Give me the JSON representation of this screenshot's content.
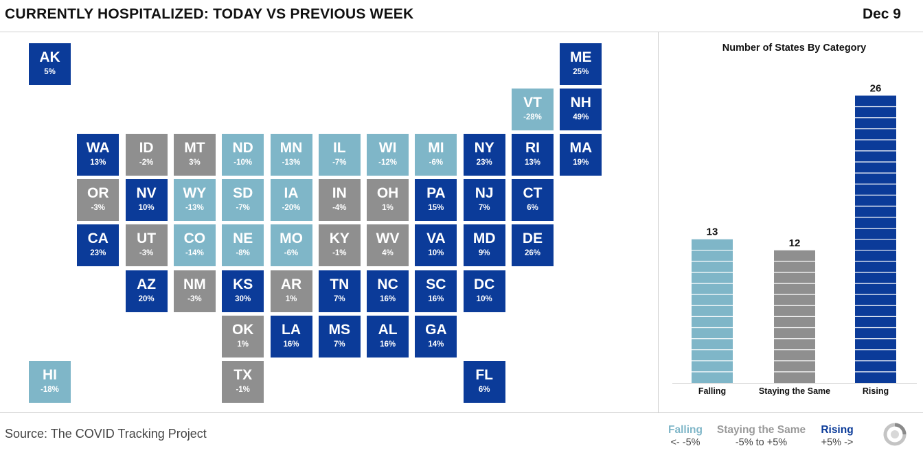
{
  "header": {
    "title": "CURRENTLY HOSPITALIZED: TODAY VS PREVIOUS WEEK",
    "date": "Dec 9"
  },
  "colors": {
    "falling": "#7fb6c8",
    "same": "#8f8f8f",
    "rising": "#0b3b99"
  },
  "states": [
    {
      "abbr": "AK",
      "pct": "5%",
      "cat": "rising",
      "col": 0,
      "row": 0
    },
    {
      "abbr": "ME",
      "pct": "25%",
      "cat": "rising",
      "col": 11,
      "row": 0
    },
    {
      "abbr": "VT",
      "pct": "-28%",
      "cat": "falling",
      "col": 10,
      "row": 1
    },
    {
      "abbr": "NH",
      "pct": "49%",
      "cat": "rising",
      "col": 11,
      "row": 1
    },
    {
      "abbr": "WA",
      "pct": "13%",
      "cat": "rising",
      "col": 1,
      "row": 2
    },
    {
      "abbr": "ID",
      "pct": "-2%",
      "cat": "same",
      "col": 2,
      "row": 2
    },
    {
      "abbr": "MT",
      "pct": "3%",
      "cat": "same",
      "col": 3,
      "row": 2
    },
    {
      "abbr": "ND",
      "pct": "-10%",
      "cat": "falling",
      "col": 4,
      "row": 2
    },
    {
      "abbr": "MN",
      "pct": "-13%",
      "cat": "falling",
      "col": 5,
      "row": 2
    },
    {
      "abbr": "IL",
      "pct": "-7%",
      "cat": "falling",
      "col": 6,
      "row": 2
    },
    {
      "abbr": "WI",
      "pct": "-12%",
      "cat": "falling",
      "col": 7,
      "row": 2
    },
    {
      "abbr": "MI",
      "pct": "-6%",
      "cat": "falling",
      "col": 8,
      "row": 2
    },
    {
      "abbr": "NY",
      "pct": "23%",
      "cat": "rising",
      "col": 9,
      "row": 2
    },
    {
      "abbr": "RI",
      "pct": "13%",
      "cat": "rising",
      "col": 10,
      "row": 2
    },
    {
      "abbr": "MA",
      "pct": "19%",
      "cat": "rising",
      "col": 11,
      "row": 2
    },
    {
      "abbr": "OR",
      "pct": "-3%",
      "cat": "same",
      "col": 1,
      "row": 3
    },
    {
      "abbr": "NV",
      "pct": "10%",
      "cat": "rising",
      "col": 2,
      "row": 3
    },
    {
      "abbr": "WY",
      "pct": "-13%",
      "cat": "falling",
      "col": 3,
      "row": 3
    },
    {
      "abbr": "SD",
      "pct": "-7%",
      "cat": "falling",
      "col": 4,
      "row": 3
    },
    {
      "abbr": "IA",
      "pct": "-20%",
      "cat": "falling",
      "col": 5,
      "row": 3
    },
    {
      "abbr": "IN",
      "pct": "-4%",
      "cat": "same",
      "col": 6,
      "row": 3
    },
    {
      "abbr": "OH",
      "pct": "1%",
      "cat": "same",
      "col": 7,
      "row": 3
    },
    {
      "abbr": "PA",
      "pct": "15%",
      "cat": "rising",
      "col": 8,
      "row": 3
    },
    {
      "abbr": "NJ",
      "pct": "7%",
      "cat": "rising",
      "col": 9,
      "row": 3
    },
    {
      "abbr": "CT",
      "pct": "6%",
      "cat": "rising",
      "col": 10,
      "row": 3
    },
    {
      "abbr": "CA",
      "pct": "23%",
      "cat": "rising",
      "col": 1,
      "row": 4
    },
    {
      "abbr": "UT",
      "pct": "-3%",
      "cat": "same",
      "col": 2,
      "row": 4
    },
    {
      "abbr": "CO",
      "pct": "-14%",
      "cat": "falling",
      "col": 3,
      "row": 4
    },
    {
      "abbr": "NE",
      "pct": "-8%",
      "cat": "falling",
      "col": 4,
      "row": 4
    },
    {
      "abbr": "MO",
      "pct": "-6%",
      "cat": "falling",
      "col": 5,
      "row": 4
    },
    {
      "abbr": "KY",
      "pct": "-1%",
      "cat": "same",
      "col": 6,
      "row": 4
    },
    {
      "abbr": "WV",
      "pct": "4%",
      "cat": "same",
      "col": 7,
      "row": 4
    },
    {
      "abbr": "VA",
      "pct": "10%",
      "cat": "rising",
      "col": 8,
      "row": 4
    },
    {
      "abbr": "MD",
      "pct": "9%",
      "cat": "rising",
      "col": 9,
      "row": 4
    },
    {
      "abbr": "DE",
      "pct": "26%",
      "cat": "rising",
      "col": 10,
      "row": 4
    },
    {
      "abbr": "AZ",
      "pct": "20%",
      "cat": "rising",
      "col": 2,
      "row": 5
    },
    {
      "abbr": "NM",
      "pct": "-3%",
      "cat": "same",
      "col": 3,
      "row": 5
    },
    {
      "abbr": "KS",
      "pct": "30%",
      "cat": "rising",
      "col": 4,
      "row": 5
    },
    {
      "abbr": "AR",
      "pct": "1%",
      "cat": "same",
      "col": 5,
      "row": 5
    },
    {
      "abbr": "TN",
      "pct": "7%",
      "cat": "rising",
      "col": 6,
      "row": 5
    },
    {
      "abbr": "NC",
      "pct": "16%",
      "cat": "rising",
      "col": 7,
      "row": 5
    },
    {
      "abbr": "SC",
      "pct": "16%",
      "cat": "rising",
      "col": 8,
      "row": 5
    },
    {
      "abbr": "DC",
      "pct": "10%",
      "cat": "rising",
      "col": 9,
      "row": 5
    },
    {
      "abbr": "OK",
      "pct": "1%",
      "cat": "same",
      "col": 4,
      "row": 6
    },
    {
      "abbr": "LA",
      "pct": "16%",
      "cat": "rising",
      "col": 5,
      "row": 6
    },
    {
      "abbr": "MS",
      "pct": "7%",
      "cat": "rising",
      "col": 6,
      "row": 6
    },
    {
      "abbr": "AL",
      "pct": "16%",
      "cat": "rising",
      "col": 7,
      "row": 6
    },
    {
      "abbr": "GA",
      "pct": "14%",
      "cat": "rising",
      "col": 8,
      "row": 6
    },
    {
      "abbr": "HI",
      "pct": "-18%",
      "cat": "falling",
      "col": 0,
      "row": 7
    },
    {
      "abbr": "TX",
      "pct": "-1%",
      "cat": "same",
      "col": 4,
      "row": 7
    },
    {
      "abbr": "FL",
      "pct": "6%",
      "cat": "rising",
      "col": 9,
      "row": 7
    }
  ],
  "chart_data": {
    "type": "bar",
    "title": "Number of States By Category",
    "categories": [
      "Falling",
      "Staying the Same",
      "Rising"
    ],
    "values": [
      13,
      12,
      26
    ],
    "colors": [
      "#7fb6c8",
      "#8f8f8f",
      "#0b3b99"
    ],
    "data_labels": true,
    "grid": false
  },
  "footer": {
    "source": "Source: The COVID Tracking Project",
    "legend": [
      {
        "label": "Falling",
        "range": "<-  -5%",
        "color": "#7fb6c8"
      },
      {
        "label": "Staying the Same",
        "range": "-5% to +5%",
        "color": "#999999"
      },
      {
        "label": "Rising",
        "range": "+5%  ->",
        "color": "#0b3b99"
      }
    ],
    "logo_icon": "covid-tracking-project-logo-icon"
  }
}
